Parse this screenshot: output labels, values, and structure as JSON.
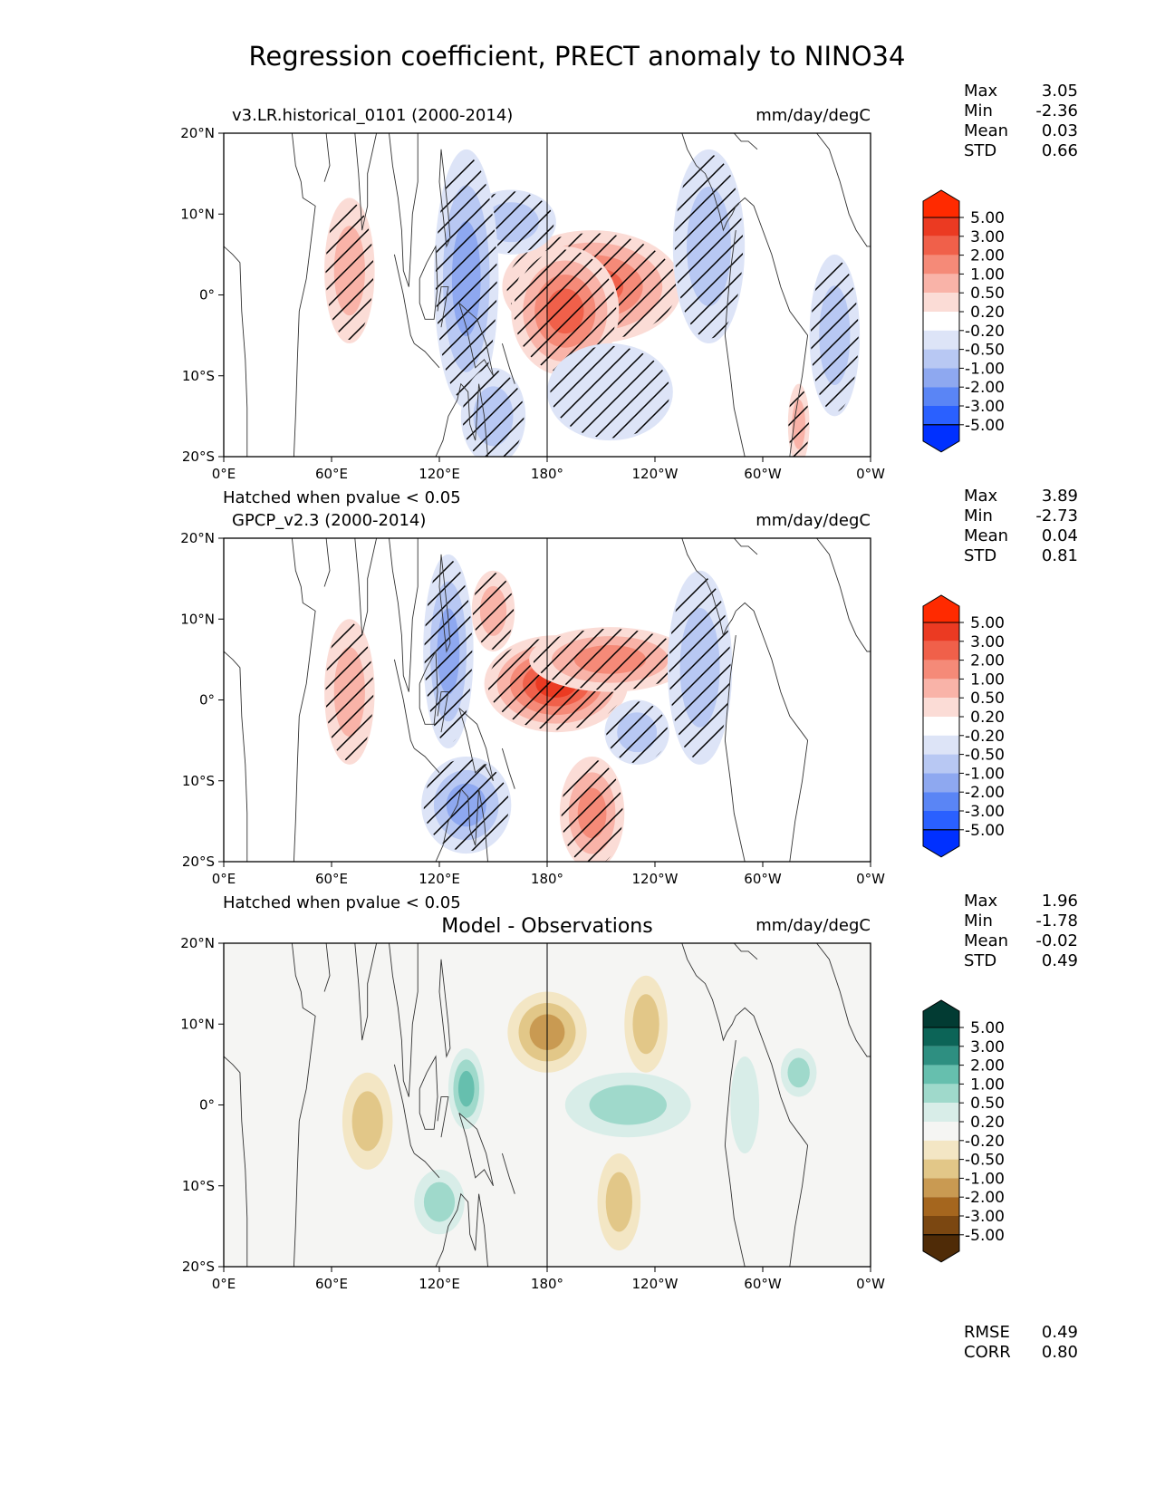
{
  "title": "Regression coefficient, PRECT anomaly to NINO34",
  "colors": {
    "diverging_red_blue": [
      "#0030ff",
      "#2a60ff",
      "#5a85f5",
      "#8ea8f0",
      "#b8c8f3",
      "#dde4f7",
      "#ffffff",
      "#fbdcd6",
      "#f9b3a8",
      "#f58a78",
      "#f0604a",
      "#eb3a22",
      "#ff2a00"
    ],
    "diverging_brown_teal": [
      "#4f2b07",
      "#7b4711",
      "#a5661e",
      "#c99a52",
      "#e2c788",
      "#f3e6c4",
      "#f5f5f3",
      "#d8ede8",
      "#9fd9cb",
      "#66bfae",
      "#2e8f81",
      "#0c6457",
      "#023b33"
    ],
    "hatch": "#000000",
    "land": "#333333"
  },
  "chart_data": [
    {
      "type": "heatmap",
      "variant": "regression-map",
      "title_left": "v3.LR.historical_0101 (2000-2014)",
      "title_center": "",
      "title_right": "mm/day/degC",
      "hatch_note": "",
      "units": "mm/day/degC",
      "x_ticks": [
        "0°E",
        "60°E",
        "120°E",
        "180°",
        "120°W",
        "60°W",
        "0°W"
      ],
      "y_ticks": [
        "20°N",
        "10°N",
        "0°",
        "10°S",
        "20°S"
      ],
      "xlim": [
        0,
        360
      ],
      "ylim": [
        -20,
        20
      ],
      "stats": [
        {
          "label": "Max",
          "value": "3.05"
        },
        {
          "label": "Min",
          "value": "-2.36"
        },
        {
          "label": "Mean",
          "value": "0.03"
        },
        {
          "label": "STD",
          "value": "0.66"
        }
      ],
      "colorbar": {
        "palette": "diverging_red_blue",
        "levels": [
          "5.00",
          "3.00",
          "2.00",
          "1.00",
          "0.50",
          "0.20",
          "-0.20",
          "-0.50",
          "-1.00",
          "-2.00",
          "-3.00",
          "-5.00"
        ]
      },
      "regions": [
        {
          "lon": 205,
          "lat": 1,
          "rlon": 50,
          "rlat": 7,
          "value": 2.5
        },
        {
          "lon": 190,
          "lat": -2,
          "rlon": 30,
          "rlat": 8,
          "value": 3.0
        },
        {
          "lon": 160,
          "lat": 9,
          "rlon": 25,
          "rlat": 4,
          "value": -1.0
        },
        {
          "lon": 135,
          "lat": 2,
          "rlon": 18,
          "rlat": 16,
          "value": -1.2
        },
        {
          "lon": 150,
          "lat": -15,
          "rlon": 18,
          "rlat": 6,
          "value": -0.8
        },
        {
          "lon": 70,
          "lat": 3,
          "rlon": 14,
          "rlat": 9,
          "value": 1.0
        },
        {
          "lon": 270,
          "lat": 6,
          "rlon": 20,
          "rlat": 12,
          "value": -0.6
        },
        {
          "lon": 215,
          "lat": -12,
          "rlon": 35,
          "rlat": 6,
          "value": -0.5
        },
        {
          "lon": 340,
          "lat": -5,
          "rlon": 14,
          "rlat": 10,
          "value": -0.7
        },
        {
          "lon": 320,
          "lat": -16,
          "rlon": 6,
          "rlat": 5,
          "value": 0.6
        }
      ]
    },
    {
      "type": "heatmap",
      "variant": "regression-map",
      "title_left": "GPCP_v2.3 (2000-2014)",
      "title_center": "",
      "title_right": "mm/day/degC",
      "hatch_note": "Hatched when pvalue < 0.05",
      "units": "mm/day/degC",
      "x_ticks": [
        "0°E",
        "60°E",
        "120°E",
        "180°",
        "120°W",
        "60°W",
        "0°W"
      ],
      "y_ticks": [
        "20°N",
        "10°N",
        "0°",
        "10°S",
        "20°S"
      ],
      "xlim": [
        0,
        360
      ],
      "ylim": [
        -20,
        20
      ],
      "stats": [
        {
          "label": "Max",
          "value": "3.89"
        },
        {
          "label": "Min",
          "value": "-2.73"
        },
        {
          "label": "Mean",
          "value": "0.04"
        },
        {
          "label": "STD",
          "value": "0.81"
        }
      ],
      "colorbar": {
        "palette": "diverging_red_blue",
        "levels": [
          "5.00",
          "3.00",
          "2.00",
          "1.00",
          "0.50",
          "0.20",
          "-0.20",
          "-0.50",
          "-1.00",
          "-2.00",
          "-3.00",
          "-5.00"
        ]
      },
      "regions": [
        {
          "lon": 185,
          "lat": 2,
          "rlon": 40,
          "rlat": 6,
          "value": 3.2
        },
        {
          "lon": 215,
          "lat": 5,
          "rlon": 45,
          "rlat": 4,
          "value": 2.0
        },
        {
          "lon": 205,
          "lat": -14,
          "rlon": 18,
          "rlat": 7,
          "value": 1.5
        },
        {
          "lon": 150,
          "lat": 11,
          "rlon": 12,
          "rlat": 5,
          "value": 0.8
        },
        {
          "lon": 125,
          "lat": 6,
          "rlon": 14,
          "rlat": 12,
          "value": -1.5
        },
        {
          "lon": 135,
          "lat": -13,
          "rlon": 25,
          "rlat": 6,
          "value": -1.3
        },
        {
          "lon": 70,
          "lat": 1,
          "rlon": 14,
          "rlat": 9,
          "value": 1.0
        },
        {
          "lon": 265,
          "lat": 4,
          "rlon": 18,
          "rlat": 12,
          "value": -0.9
        },
        {
          "lon": 230,
          "lat": -4,
          "rlon": 18,
          "rlat": 4,
          "value": -0.6
        }
      ]
    },
    {
      "type": "heatmap",
      "variant": "difference-map",
      "title_left": "",
      "title_center": "Model - Observations",
      "title_right": "mm/day/degC",
      "hatch_note": "Hatched when pvalue < 0.05",
      "units": "mm/day/degC",
      "x_ticks": [
        "0°E",
        "60°E",
        "120°E",
        "180°",
        "120°W",
        "60°W",
        "0°W"
      ],
      "y_ticks": [
        "20°N",
        "10°N",
        "0°",
        "10°S",
        "20°S"
      ],
      "xlim": [
        0,
        360
      ],
      "ylim": [
        -20,
        20
      ],
      "stats": [
        {
          "label": "Max",
          "value": "1.96"
        },
        {
          "label": "Min",
          "value": "-1.78"
        },
        {
          "label": "Mean",
          "value": "-0.02"
        },
        {
          "label": "STD",
          "value": "0.49"
        }
      ],
      "colorbar": {
        "palette": "diverging_brown_teal",
        "levels": [
          "5.00",
          "3.00",
          "2.00",
          "1.00",
          "0.50",
          "0.20",
          "-0.20",
          "-0.50",
          "-1.00",
          "-2.00",
          "-3.00",
          "-5.00"
        ]
      },
      "regions": [
        {
          "lon": 180,
          "lat": 9,
          "rlon": 22,
          "rlat": 5,
          "value": -1.2
        },
        {
          "lon": 235,
          "lat": 10,
          "rlon": 12,
          "rlat": 6,
          "value": -0.9
        },
        {
          "lon": 80,
          "lat": -2,
          "rlon": 14,
          "rlat": 6,
          "value": -0.6
        },
        {
          "lon": 135,
          "lat": 2,
          "rlon": 10,
          "rlat": 5,
          "value": 1.3
        },
        {
          "lon": 225,
          "lat": 0,
          "rlon": 35,
          "rlat": 4,
          "value": 0.8
        },
        {
          "lon": 120,
          "lat": -12,
          "rlon": 14,
          "rlat": 4,
          "value": 0.7
        },
        {
          "lon": 220,
          "lat": -12,
          "rlon": 12,
          "rlat": 6,
          "value": -0.6
        },
        {
          "lon": 320,
          "lat": 4,
          "rlon": 10,
          "rlat": 3,
          "value": 0.6
        },
        {
          "lon": 290,
          "lat": 0,
          "rlon": 8,
          "rlat": 6,
          "value": 0.5
        }
      ]
    }
  ],
  "metrics": [
    {
      "label": "RMSE",
      "value": "0.49"
    },
    {
      "label": "CORR",
      "value": "0.80"
    }
  ]
}
